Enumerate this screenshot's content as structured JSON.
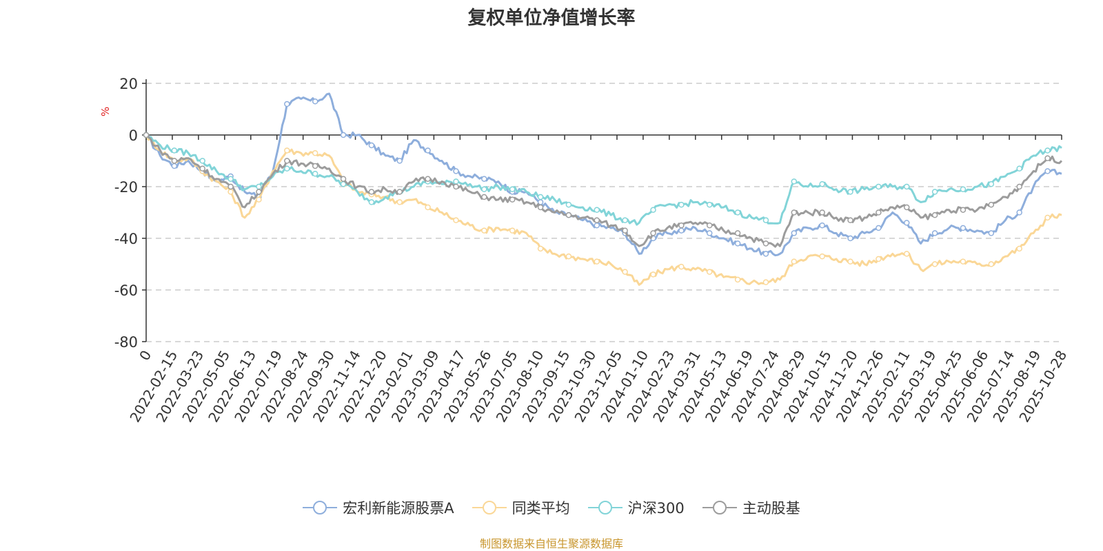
{
  "chart_data": {
    "type": "line",
    "title": "复权单位净值增长率",
    "ylabel": "%",
    "source": "制图数据来自恒生聚源数据库",
    "ylim": [
      -80,
      20
    ],
    "yticks": [
      "20",
      "0",
      "-20",
      "-40",
      "-60",
      "-80"
    ],
    "xticks": [
      "0",
      "2022-02-15",
      "2022-03-23",
      "2022-05-05",
      "2022-06-13",
      "2022-07-19",
      "2022-08-24",
      "2022-09-30",
      "2022-11-14",
      "2022-12-20",
      "2023-02-01",
      "2023-03-09",
      "2023-04-17",
      "2023-05-26",
      "2023-07-05",
      "2023-08-10",
      "2023-09-15",
      "2023-10-30",
      "2023-12-05",
      "2024-01-10",
      "2024-02-23",
      "2024-03-31",
      "2024-05-13",
      "2024-06-19",
      "2024-07-24",
      "2024-08-29",
      "2024-10-15",
      "2024-11-20",
      "2024-12-26",
      "2025-02-11",
      "2025-03-19",
      "2025-04-25",
      "2025-06-06",
      "2025-07-14",
      "2025-08-19",
      "2025-10-28"
    ],
    "series": [
      {
        "name": "宏利新能源股票A",
        "color": "#8eaedc",
        "values": [
          0,
          -8,
          -12,
          -10,
          -14,
          -18,
          -16,
          -22,
          -24,
          -14,
          12,
          14,
          13,
          16,
          0,
          0,
          -4,
          -8,
          -10,
          -2,
          -6,
          -10,
          -14,
          -16,
          -17,
          -18,
          -22,
          -22,
          -26,
          -30,
          -31,
          -33,
          -35,
          -36,
          -38,
          -46,
          -40,
          -38,
          -37,
          -36,
          -38,
          -40,
          -42,
          -44,
          -46,
          -46,
          -38,
          -36,
          -35,
          -38,
          -40,
          -38,
          -36,
          -30,
          -34,
          -42,
          -38,
          -36,
          -36,
          -37,
          -38,
          -33,
          -30,
          -20,
          -14,
          -15
        ]
      },
      {
        "name": "同类平均",
        "color": "#fad797",
        "values": [
          0,
          -6,
          -10,
          -9,
          -14,
          -18,
          -22,
          -32,
          -25,
          -14,
          -6,
          -7,
          -7,
          -8,
          -18,
          -22,
          -23,
          -24,
          -26,
          -25,
          -28,
          -30,
          -33,
          -35,
          -37,
          -36,
          -37,
          -38,
          -44,
          -46,
          -47,
          -48,
          -49,
          -50,
          -53,
          -58,
          -54,
          -52,
          -51,
          -52,
          -53,
          -55,
          -56,
          -57,
          -57,
          -56,
          -49,
          -47,
          -47,
          -48,
          -49,
          -50,
          -48,
          -46,
          -46,
          -52,
          -50,
          -49,
          -49,
          -50,
          -50,
          -47,
          -44,
          -38,
          -32,
          -31
        ]
      },
      {
        "name": "沪深300",
        "color": "#82d4d8",
        "values": [
          0,
          -4,
          -6,
          -7,
          -10,
          -14,
          -17,
          -21,
          -20,
          -16,
          -13,
          -14,
          -15,
          -16,
          -19,
          -22,
          -26,
          -24,
          -22,
          -20,
          -18,
          -19,
          -18,
          -19,
          -21,
          -20,
          -21,
          -22,
          -24,
          -25,
          -27,
          -28,
          -29,
          -31,
          -33,
          -34,
          -29,
          -27,
          -27,
          -26,
          -27,
          -28,
          -30,
          -32,
          -33,
          -34,
          -18,
          -20,
          -19,
          -21,
          -22,
          -21,
          -20,
          -20,
          -20,
          -26,
          -22,
          -21,
          -21,
          -20,
          -19,
          -16,
          -13,
          -8,
          -6,
          -5
        ]
      },
      {
        "name": "主动股基",
        "color": "#9c9c9c",
        "values": [
          0,
          -6,
          -10,
          -9,
          -13,
          -17,
          -20,
          -28,
          -22,
          -15,
          -10,
          -11,
          -12,
          -13,
          -17,
          -20,
          -22,
          -21,
          -22,
          -18,
          -17,
          -18,
          -20,
          -22,
          -24,
          -25,
          -25,
          -26,
          -28,
          -30,
          -31,
          -32,
          -33,
          -35,
          -37,
          -43,
          -38,
          -36,
          -35,
          -34,
          -35,
          -37,
          -38,
          -40,
          -42,
          -43,
          -30,
          -30,
          -30,
          -32,
          -33,
          -32,
          -30,
          -28,
          -28,
          -32,
          -31,
          -29,
          -29,
          -29,
          -27,
          -24,
          -20,
          -14,
          -9,
          -10
        ]
      }
    ]
  }
}
